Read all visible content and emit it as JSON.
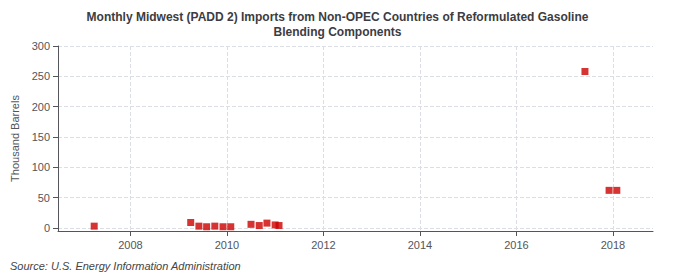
{
  "chart_data": {
    "type": "scatter",
    "title": "Monthly Midwest (PADD 2) Imports from Non-OPEC Countries of Reformulated Gasoline\nBlending Components",
    "ylabel": "Thousand Barrels",
    "annotations": [
      "Source: U.S. Energy Information Administration"
    ],
    "x": [
      2007.25,
      2009.25,
      2009.42,
      2009.58,
      2009.75,
      2009.92,
      2010.08,
      2010.5,
      2010.67,
      2010.83,
      2011.0,
      2011.08,
      2017.42,
      2017.92,
      2018.08
    ],
    "values": [
      3,
      9,
      3,
      2,
      3,
      2,
      2,
      6,
      4,
      8,
      5,
      4,
      258,
      62,
      62
    ],
    "color": "#cc0000",
    "marker": "square",
    "xlim": [
      2006.5,
      2018.83
    ],
    "xticks": [
      2008,
      2010,
      2012,
      2014,
      2016,
      2018
    ],
    "ylim": [
      -5,
      300
    ],
    "yticks": [
      0,
      50,
      100,
      150,
      200,
      250,
      300
    ],
    "grid": true
  }
}
